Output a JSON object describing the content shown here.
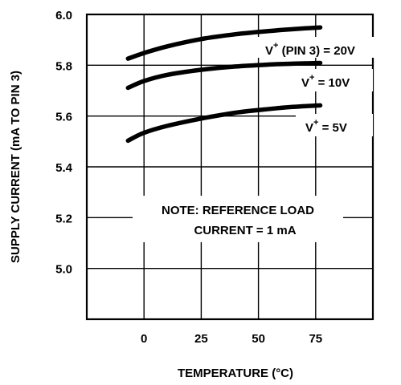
{
  "chart_data": {
    "type": "line",
    "title": "",
    "xlabel": "TEMPERATURE (°C)",
    "ylabel": "SUPPLY CURRENT (mA TO PIN 3)",
    "xlim": [
      -25,
      100
    ],
    "ylim": [
      4.8,
      6.0
    ],
    "x_ticks": [
      "0",
      "25",
      "50",
      "75"
    ],
    "y_ticks": [
      "6.0",
      "5.8",
      "5.6",
      "5.4",
      "5.2",
      "5.0"
    ],
    "grid": true,
    "series": [
      {
        "name_prefix": "V",
        "name_sup": "+",
        "name_suffix": " (PIN 3) = 20V",
        "x": [
          -7,
          0,
          10,
          25,
          40,
          55,
          65,
          77
        ],
        "values": [
          5.826,
          5.848,
          5.874,
          5.903,
          5.922,
          5.935,
          5.942,
          5.949
        ]
      },
      {
        "name_prefix": "V",
        "name_sup": "+",
        "name_suffix": " = 10V",
        "x": [
          -7,
          0,
          10,
          25,
          40,
          55,
          65,
          77
        ],
        "values": [
          5.711,
          5.738,
          5.762,
          5.782,
          5.795,
          5.803,
          5.806,
          5.809
        ]
      },
      {
        "name_prefix": "V",
        "name_sup": "+",
        "name_suffix": " = 5V",
        "x": [
          -7,
          0,
          10,
          25,
          40,
          55,
          65,
          77
        ],
        "values": [
          5.503,
          5.534,
          5.561,
          5.59,
          5.613,
          5.628,
          5.636,
          5.642
        ]
      }
    ],
    "annotation": {
      "line1": "NOTE:  REFERENCE LOAD",
      "line2": "CURRENT = 1 mA"
    }
  }
}
